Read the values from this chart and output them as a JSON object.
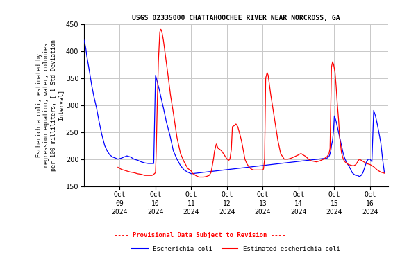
{
  "title": "USGS 02335000 CHATTAHOOCHEE RIVER NEAR NORCROSS, GA",
  "ylabel": "Escherichia coli, estimated by\nregression equation, water, colonies\nper 100 milliliters, [+1 Std Deviation\nInterval]",
  "ylim": [
    150,
    450
  ],
  "yticks": [
    150,
    200,
    250,
    300,
    350,
    400,
    450
  ],
  "blue_color": "#0000ff",
  "red_color": "#ff0000",
  "bg_color": "#ffffff",
  "grid_color": "#c8c8c8",
  "provisional_text": "---- Provisional Data Subject to Revision ----",
  "legend_blue": "Escherichia coli",
  "legend_red": "Estimated escherichia coli",
  "xlim": [
    0,
    8.5
  ],
  "x_tick_positions": [
    1,
    2,
    3,
    4,
    5,
    6,
    7,
    8
  ],
  "x_tick_labels": [
    "Oct\n09\n2024",
    "Oct\n10\n2024",
    "Oct\n11\n2024",
    "Oct\n12\n2024",
    "Oct\n13\n2024",
    "Oct\n14\n2024",
    "Oct\n15\n2024",
    "Oct\n16\n2024"
  ],
  "blue_x": [
    0.0,
    0.02,
    0.05,
    0.08,
    0.12,
    0.17,
    0.22,
    0.28,
    0.35,
    0.42,
    0.5,
    0.58,
    0.65,
    0.72,
    0.8,
    0.88,
    0.95,
    1.05,
    1.12,
    1.2,
    1.3,
    1.4,
    1.5,
    1.6,
    1.7,
    1.8,
    1.88,
    1.95,
    2.0,
    2.03,
    2.06,
    2.1,
    2.15,
    2.22,
    2.3,
    2.4,
    2.5,
    2.6,
    2.7,
    2.8,
    2.9,
    3.0,
    6.8,
    6.85,
    6.87,
    6.9,
    6.92,
    6.95,
    6.98,
    7.0,
    7.05,
    7.1,
    7.15,
    7.2,
    7.25,
    7.3,
    7.35,
    7.4,
    7.45,
    7.5,
    7.55,
    7.6,
    7.65,
    7.7,
    7.75,
    7.8,
    7.85,
    7.9,
    7.95,
    8.0,
    8.05,
    8.1,
    8.15,
    8.2,
    8.25,
    8.3,
    8.35,
    8.4
  ],
  "blue_y": [
    420,
    415,
    405,
    390,
    375,
    355,
    335,
    315,
    295,
    270,
    245,
    225,
    215,
    208,
    204,
    202,
    200,
    202,
    204,
    206,
    204,
    200,
    198,
    195,
    193,
    192,
    192,
    192,
    355,
    348,
    340,
    330,
    315,
    295,
    270,
    245,
    215,
    200,
    188,
    180,
    176,
    173,
    202,
    205,
    208,
    215,
    225,
    235,
    255,
    280,
    270,
    255,
    240,
    225,
    210,
    200,
    193,
    188,
    182,
    175,
    172,
    170,
    170,
    168,
    170,
    175,
    185,
    195,
    200,
    200,
    195,
    290,
    280,
    265,
    248,
    230,
    200,
    175
  ],
  "red_x": [
    0.95,
    1.0,
    1.05,
    1.1,
    1.15,
    1.2,
    1.3,
    1.4,
    1.5,
    1.6,
    1.7,
    1.8,
    1.9,
    1.95,
    2.0,
    2.02,
    2.05,
    2.08,
    2.12,
    2.15,
    2.18,
    2.22,
    2.28,
    2.35,
    2.42,
    2.5,
    2.6,
    2.7,
    2.8,
    2.9,
    3.0,
    3.02,
    3.05,
    3.08,
    3.12,
    3.15,
    3.18,
    3.22,
    3.28,
    3.35,
    3.42,
    3.5,
    3.55,
    3.58,
    3.62,
    3.65,
    3.7,
    3.75,
    3.8,
    3.85,
    3.9,
    3.95,
    4.0,
    4.05,
    4.08,
    4.12,
    4.15,
    4.2,
    4.25,
    4.3,
    4.35,
    4.4,
    4.45,
    4.5,
    4.55,
    4.6,
    4.65,
    4.7,
    4.75,
    4.8,
    4.85,
    4.9,
    4.95,
    5.0,
    5.02,
    5.05,
    5.08,
    5.12,
    5.15,
    5.18,
    5.22,
    5.28,
    5.35,
    5.42,
    5.5,
    5.6,
    5.7,
    5.8,
    5.9,
    6.0,
    6.05,
    6.08,
    6.12,
    6.15,
    6.2,
    6.28,
    6.35,
    6.42,
    6.5,
    6.6,
    6.7,
    6.8,
    6.85,
    6.88,
    6.92,
    6.95,
    6.98,
    7.02,
    7.05,
    7.08,
    7.12,
    7.15,
    7.2,
    7.25,
    7.3,
    7.35,
    7.4,
    7.45,
    7.5,
    7.55,
    7.6,
    7.65,
    7.7,
    7.75,
    7.8,
    7.85,
    7.9,
    7.95,
    8.0,
    8.05,
    8.1,
    8.15,
    8.2,
    8.25,
    8.3,
    8.35,
    8.4
  ],
  "red_y": [
    185,
    183,
    181,
    180,
    179,
    178,
    176,
    175,
    173,
    172,
    170,
    170,
    170,
    172,
    175,
    215,
    305,
    380,
    435,
    440,
    435,
    420,
    390,
    355,
    318,
    285,
    240,
    210,
    195,
    183,
    178,
    175,
    173,
    172,
    170,
    169,
    168,
    167,
    167,
    167,
    168,
    170,
    175,
    185,
    200,
    215,
    228,
    220,
    218,
    215,
    210,
    205,
    200,
    198,
    200,
    218,
    260,
    262,
    265,
    260,
    248,
    235,
    218,
    200,
    192,
    187,
    183,
    181,
    180,
    180,
    180,
    180,
    180,
    180,
    182,
    200,
    350,
    360,
    355,
    340,
    320,
    295,
    265,
    235,
    210,
    200,
    200,
    202,
    205,
    208,
    210,
    210,
    208,
    207,
    205,
    200,
    197,
    196,
    195,
    197,
    200,
    205,
    210,
    220,
    370,
    380,
    375,
    360,
    335,
    305,
    272,
    240,
    212,
    200,
    195,
    192,
    190,
    189,
    188,
    188,
    190,
    195,
    200,
    198,
    196,
    194,
    192,
    191,
    190,
    188,
    186,
    183,
    180,
    178,
    176,
    175,
    174
  ]
}
